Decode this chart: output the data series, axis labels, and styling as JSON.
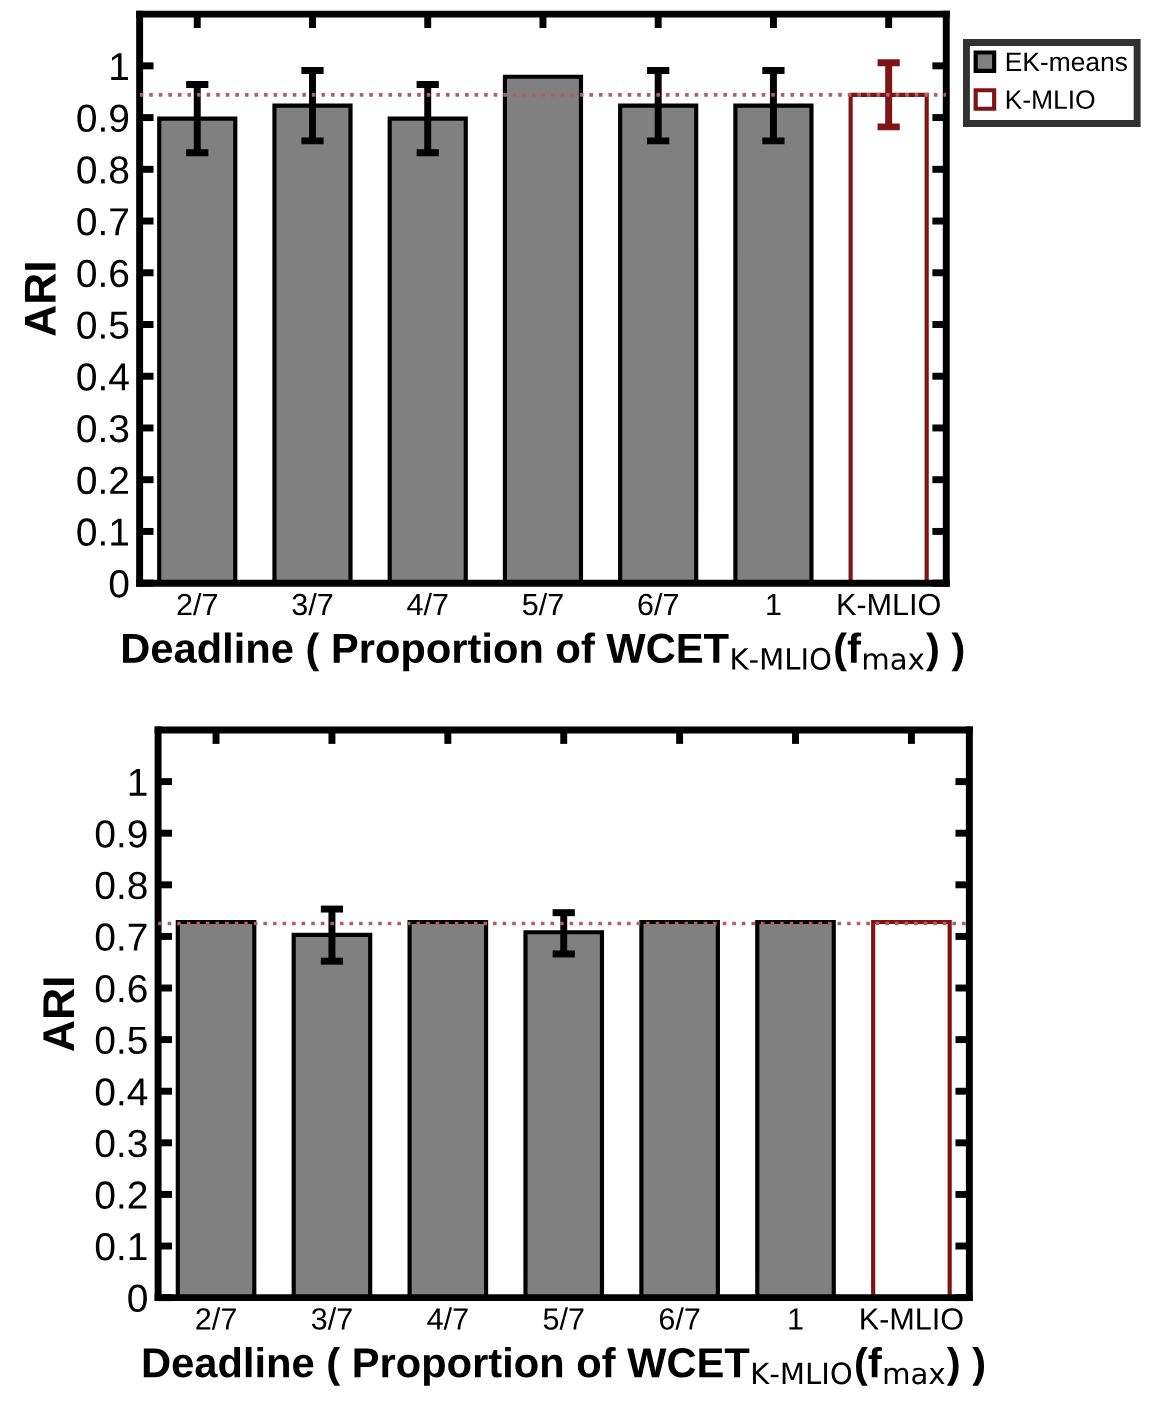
{
  "chart_data": [
    {
      "type": "bar",
      "categories": [
        "2/7",
        "3/7",
        "4/7",
        "5/7",
        "6/7",
        "1",
        "K-MLIO"
      ],
      "xlabel": "Deadline ( Proportion of WCET$_{K-MLIO}$(f$_{max}$) )",
      "ylabel": "ARI",
      "series": [
        {
          "name": "EK-means",
          "color": "#808080",
          "values": [
            0.898,
            0.923,
            0.898,
            0.979,
            0.923,
            0.923,
            null
          ],
          "errors": [
            0.066,
            0.068,
            0.066,
            null,
            0.068,
            0.068,
            null
          ]
        },
        {
          "name": "K-MLIO",
          "color": "#7f1416",
          "values": [
            null,
            null,
            null,
            null,
            null,
            null,
            0.944
          ],
          "errors": [
            null,
            null,
            null,
            null,
            null,
            null,
            0.062
          ]
        }
      ],
      "ylim": [
        0,
        1.1
      ],
      "yticks": [
        0,
        0.1,
        0.2,
        0.3,
        0.4,
        0.5,
        0.6,
        0.7,
        0.8,
        0.9,
        1
      ],
      "ref_lines": [
        {
          "axis": "y",
          "value": 0.944,
          "color": "#b06060",
          "line_style": "dotted"
        }
      ],
      "grid": false,
      "legend": "top right"
    },
    {
      "type": "bar",
      "categories": [
        "2/7",
        "3/7",
        "4/7",
        "5/7",
        "6/7",
        "1",
        "K-MLIO"
      ],
      "xlabel": "Deadline ( Proportion of WCET$_{K-MLIO}$(f$_{max}$) )",
      "ylabel": "ARI",
      "series": [
        {
          "color": "#808080",
          "values": [
            0.728,
            0.703,
            0.728,
            0.708,
            0.728,
            0.728,
            null
          ],
          "errors": [
            null,
            [
              0.652,
              0.753
            ],
            null,
            [
              0.666,
              0.746
            ],
            null,
            null,
            null
          ]
        },
        {
          "color": "#7f1416",
          "values": [
            null,
            null,
            null,
            null,
            null,
            null,
            0.728
          ]
        }
      ],
      "ylim": [
        0,
        1.1
      ],
      "yticks": [
        0,
        0.1,
        0.2,
        0.3,
        0.4,
        0.5,
        0.6,
        0.7,
        0.8,
        0.9,
        1
      ],
      "ref_lines": [
        {
          "axis": "y",
          "value": 0.725,
          "color": "#b06060",
          "line_style": "dotted"
        }
      ],
      "grid": false
    }
  ]
}
